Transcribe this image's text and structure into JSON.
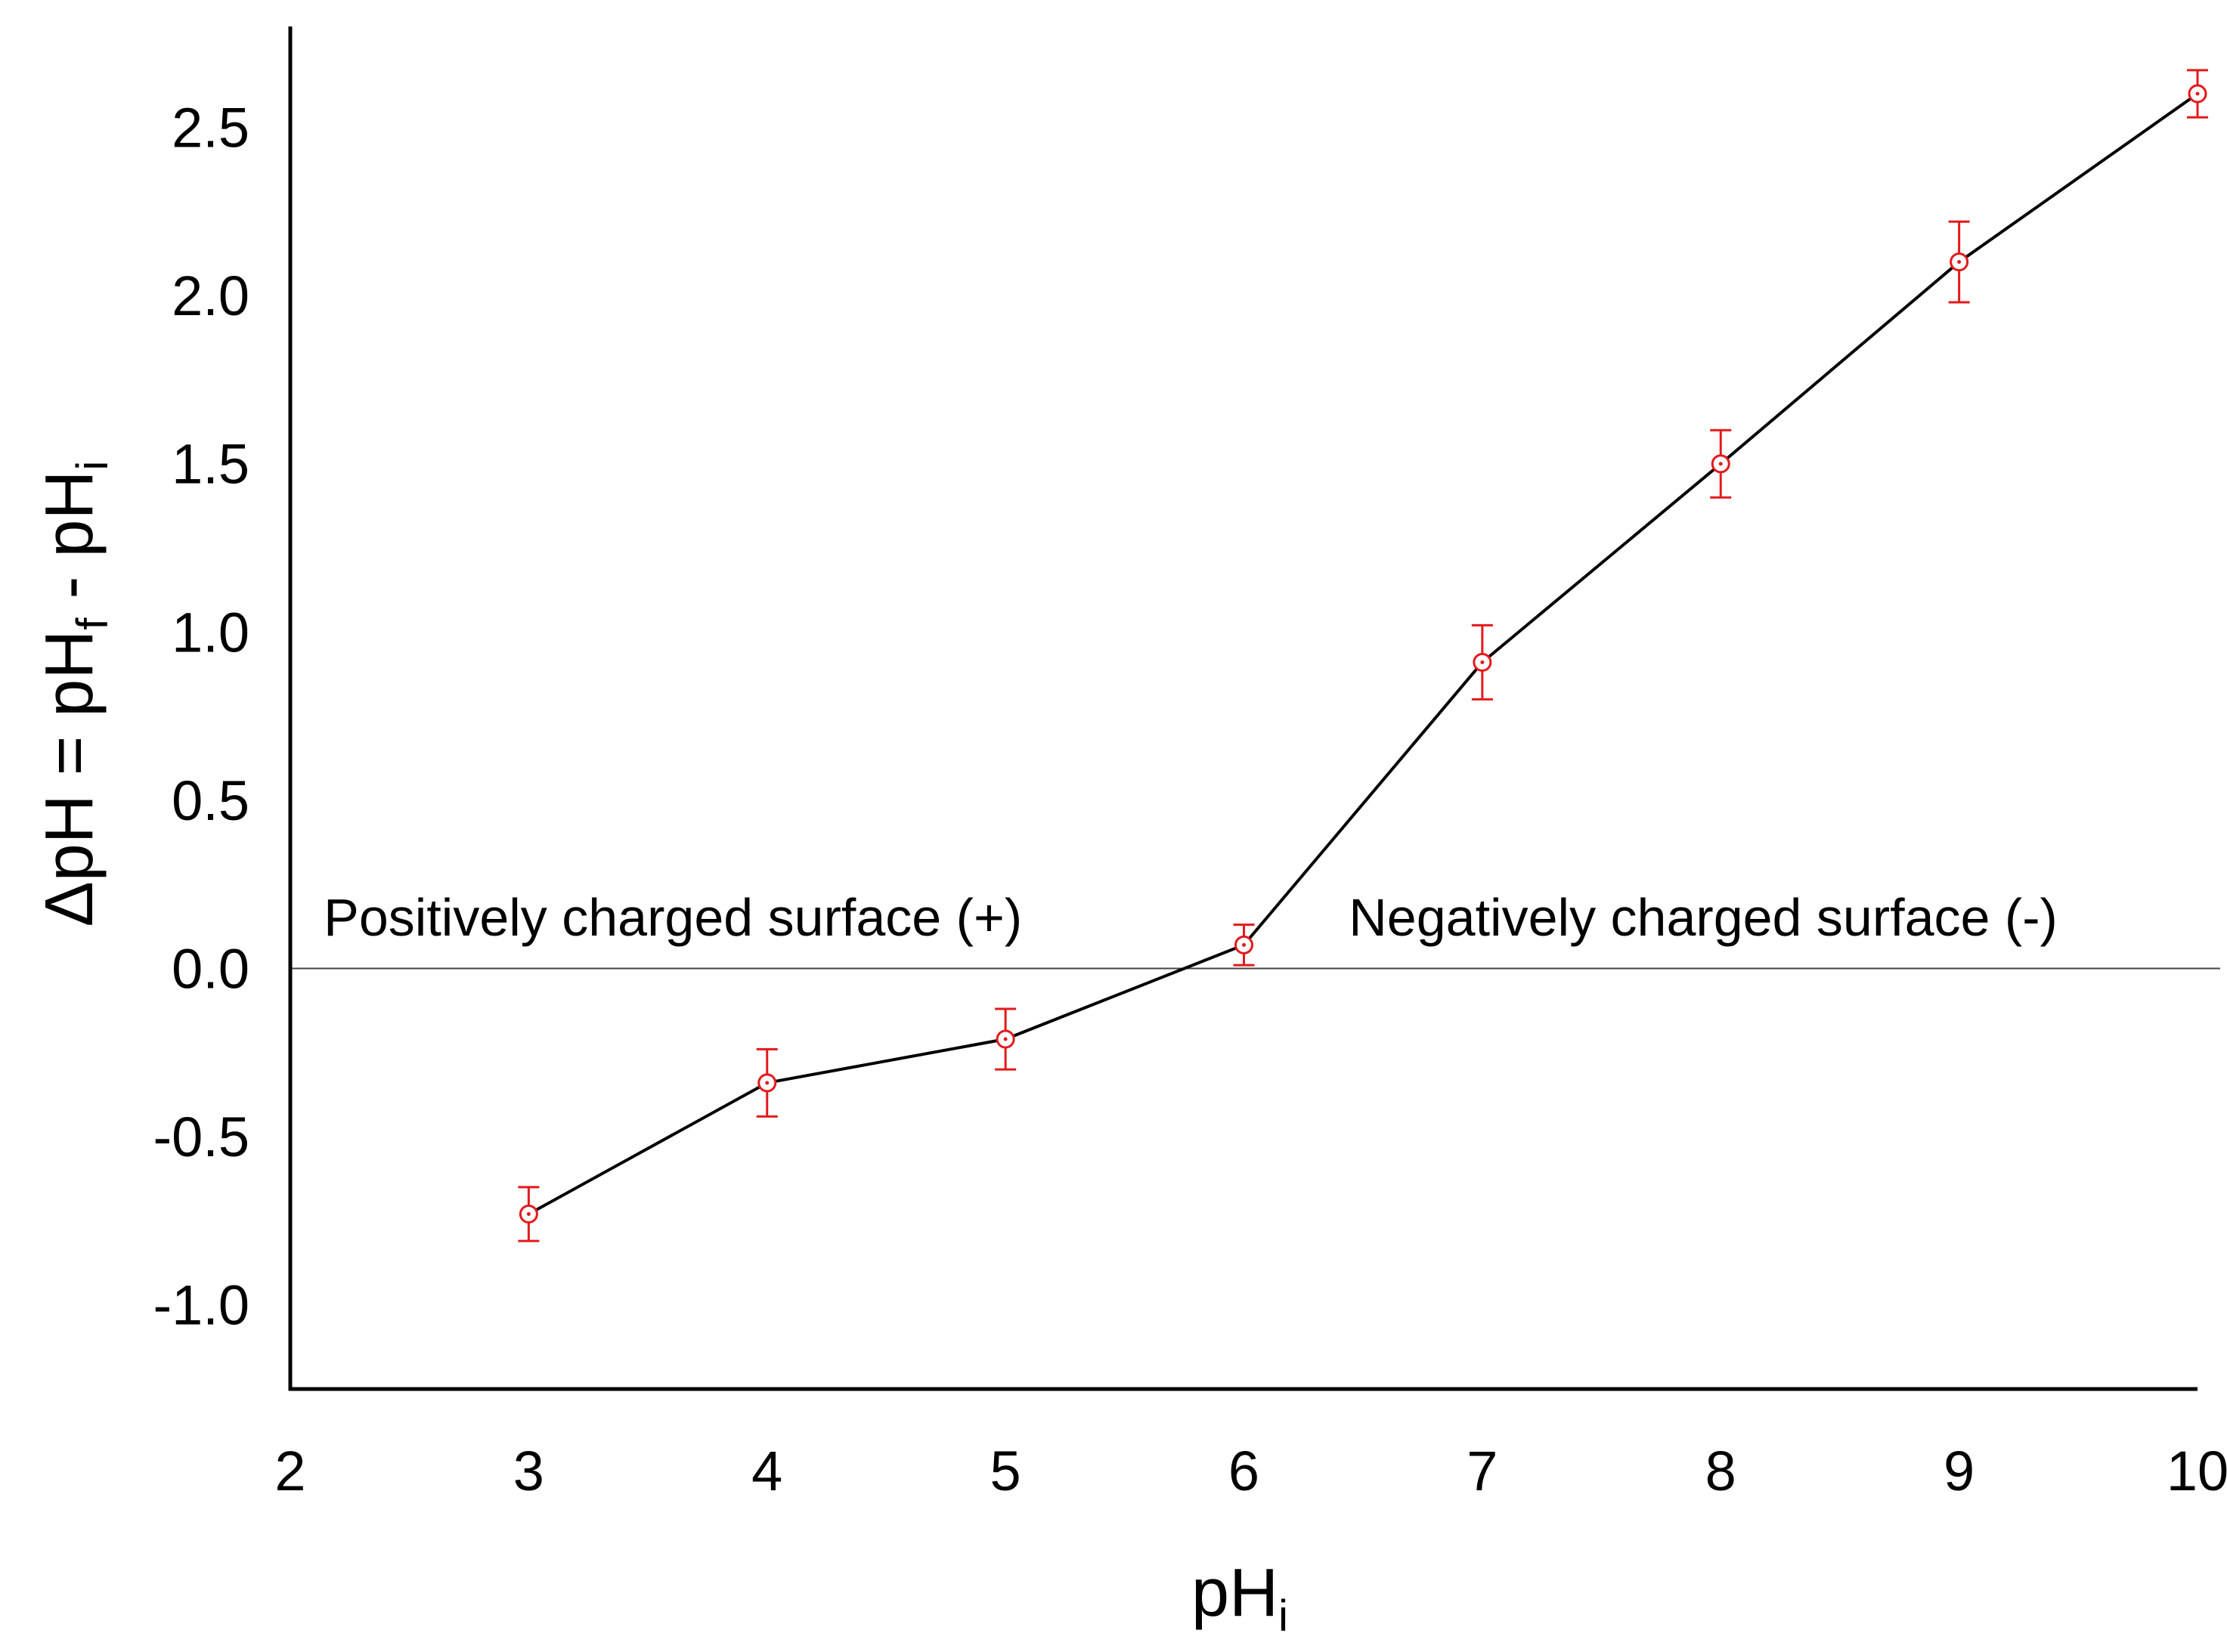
{
  "chart_data": {
    "type": "line",
    "title": "",
    "xlabel": {
      "main": "pH",
      "sub": "i"
    },
    "ylabel": {
      "prefix": "ΔpH = pH",
      "sub1": "f",
      "middle": " - pH",
      "sub2": "i"
    },
    "xlim": [
      2,
      10
    ],
    "ylim": [
      -1.25,
      2.8
    ],
    "xticks": [
      2,
      3,
      4,
      5,
      6,
      7,
      8,
      9,
      10
    ],
    "xtick_labels": [
      "2",
      "3",
      "4",
      "5",
      "6",
      "7",
      "8",
      "9",
      "10"
    ],
    "yticks": [
      -1.0,
      -0.5,
      0.0,
      0.5,
      1.0,
      1.5,
      2.0,
      2.5
    ],
    "ytick_labels": [
      "-1.0",
      "-0.5",
      "0.0",
      "0.5",
      "1.0",
      "1.5",
      "2.0",
      "2.5"
    ],
    "grid": false,
    "reference_line_y": 0,
    "series": [
      {
        "name": "ΔpH",
        "x": [
          3,
          4,
          5,
          6,
          7,
          8,
          9,
          10
        ],
        "y": [
          -0.73,
          -0.34,
          -0.21,
          0.07,
          0.91,
          1.5,
          2.1,
          2.6
        ],
        "yerr": [
          0.08,
          0.1,
          0.09,
          0.06,
          0.11,
          0.1,
          0.12,
          0.07
        ]
      }
    ],
    "annotations": [
      {
        "text": "Positively charged surface (+)",
        "x": 2.14,
        "y": 0.12
      },
      {
        "text": "Negatively charged surface (-)",
        "x": 6.44,
        "y": 0.12
      }
    ],
    "colors": {
      "line": "#000000",
      "marker": "#e31a1c",
      "errorbar": "#e31a1c",
      "axis": "#000000"
    }
  }
}
